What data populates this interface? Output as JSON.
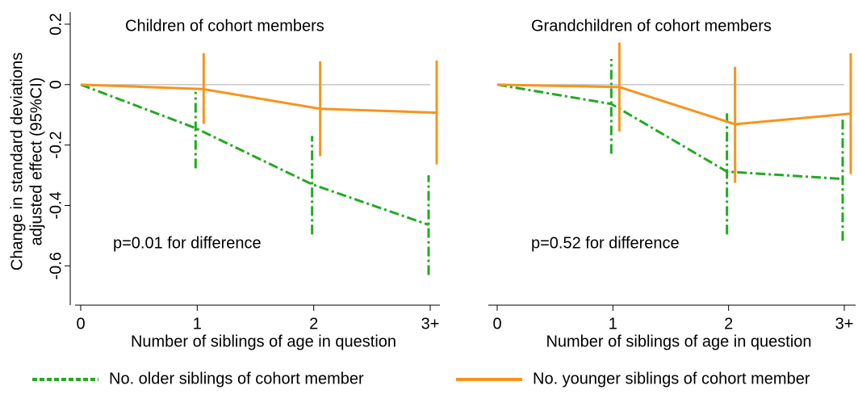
{
  "chart_data": {
    "type": "line",
    "ylabel": [
      "Change in standard deviations",
      "adjusted effect (95%CI)"
    ],
    "xlabel": "Number of siblings of age in question",
    "categories": [
      "0",
      "1",
      "2",
      "3+"
    ],
    "ylim": [
      -0.73,
      0.24
    ],
    "yticks": [
      0.2,
      0,
      -0.2,
      -0.4,
      -0.6
    ],
    "hline": 0,
    "series": [
      {
        "name": "No. older siblings of cohort member",
        "color": "#22aa22",
        "dash": true
      },
      {
        "name": "No. younger siblings of cohort member",
        "color": "#f7941d",
        "dash": false
      }
    ],
    "panels": [
      {
        "title": "Children of cohort members",
        "annotation": "p=0.01 for difference",
        "series": [
          {
            "values": [
              0,
              -0.144,
              -0.33,
              -0.464
            ],
            "lower": [
              null,
              -0.277,
              -0.496,
              -0.63
            ],
            "upper": [
              null,
              -0.024,
              -0.17,
              -0.3
            ]
          },
          {
            "values": [
              0,
              -0.015,
              -0.08,
              -0.093
            ],
            "lower": [
              null,
              -0.13,
              -0.237,
              -0.264
            ],
            "upper": [
              null,
              0.104,
              0.077,
              0.08
            ]
          }
        ]
      },
      {
        "title": "Grandchildren of cohort members",
        "annotation": "p=0.52 for difference",
        "series": [
          {
            "values": [
              0,
              -0.064,
              -0.288,
              -0.312
            ],
            "lower": [
              null,
              -0.229,
              -0.496,
              -0.517
            ],
            "upper": [
              null,
              0.085,
              -0.09,
              -0.112
            ]
          },
          {
            "values": [
              0,
              -0.008,
              -0.131,
              -0.096
            ],
            "lower": [
              null,
              -0.155,
              -0.325,
              -0.296
            ],
            "upper": [
              null,
              0.139,
              0.059,
              0.104
            ]
          }
        ]
      }
    ]
  }
}
